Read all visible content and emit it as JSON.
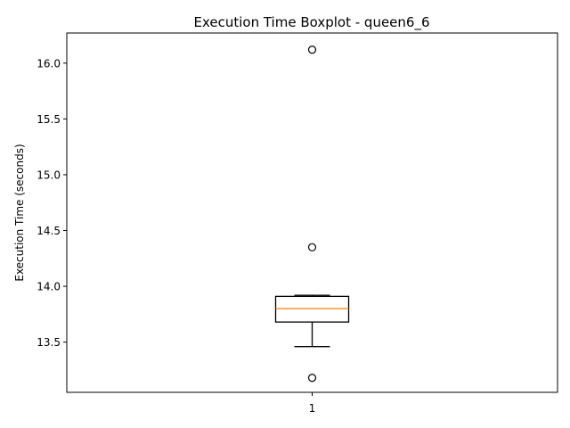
{
  "chart_data": {
    "type": "boxplot",
    "title": "Execution Time Boxplot - queen6_6",
    "xlabel": "",
    "ylabel": "Execution Time (seconds)",
    "categories": [
      "1"
    ],
    "ylim": [
      13.05,
      16.27
    ],
    "yticks": [
      13.5,
      14.0,
      14.5,
      15.0,
      15.5,
      16.0
    ],
    "ytick_labels": [
      "13.5",
      "14.0",
      "14.5",
      "15.0",
      "15.5",
      "16.0"
    ],
    "grid": false,
    "boxes": [
      {
        "category": "1",
        "whisker_low": 13.46,
        "q1": 13.68,
        "median": 13.8,
        "q3": 13.91,
        "whisker_high": 13.92,
        "outliers": [
          16.12,
          14.35,
          13.18
        ]
      }
    ],
    "colors": {
      "box": "#000000",
      "median": "#ff7f0e",
      "outlier": "#000000"
    }
  }
}
